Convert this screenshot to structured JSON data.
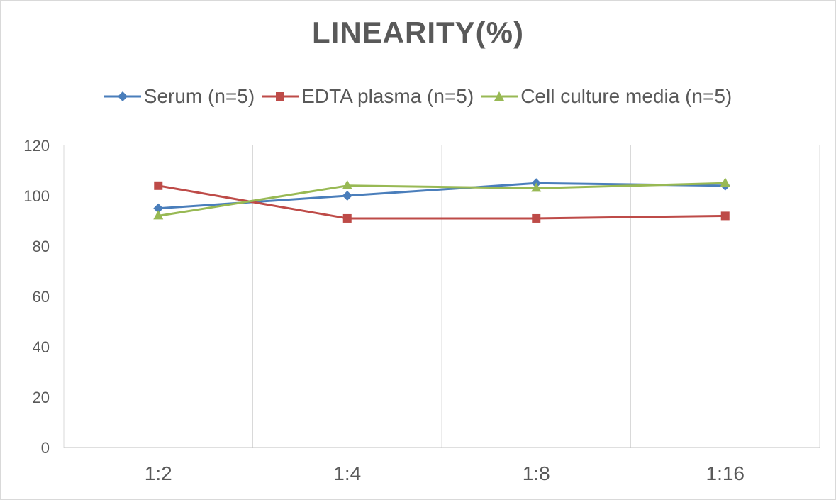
{
  "chart_data": {
    "type": "line",
    "title": "LINEARITY(%)",
    "categories": [
      "1:2",
      "1:4",
      "1:8",
      "1:16"
    ],
    "series": [
      {
        "name": "Serum (n=5)",
        "values": [
          95,
          100,
          105,
          104
        ],
        "color": "#4a7ebb",
        "marker": "diamond"
      },
      {
        "name": "EDTA plasma (n=5)",
        "values": [
          104,
          91,
          91,
          92
        ],
        "color": "#be4b48",
        "marker": "square"
      },
      {
        "name": "Cell culture media (n=5)",
        "values": [
          92,
          104,
          103,
          105
        ],
        "color": "#98b954",
        "marker": "triangle"
      }
    ],
    "ylim": [
      0,
      120
    ],
    "yticks": [
      0,
      20,
      40,
      60,
      80,
      100,
      120
    ],
    "grid": "vertical",
    "legend": "top"
  }
}
